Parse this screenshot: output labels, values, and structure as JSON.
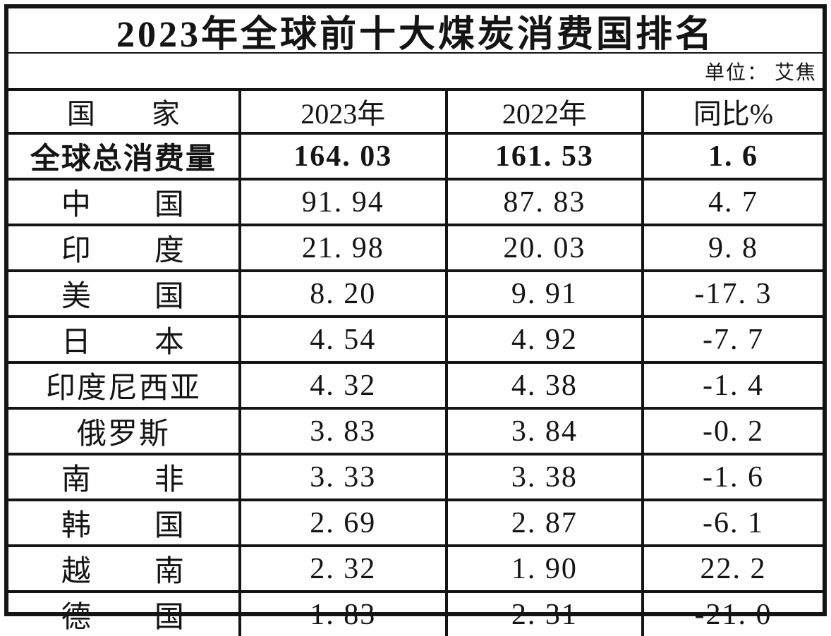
{
  "title": "2023年全球前十大煤炭消费国排名",
  "unit_label": "单位： 艾焦",
  "table": {
    "header": [
      "国　　家",
      "2023年",
      "2022年",
      "同比%"
    ],
    "total_row": {
      "country": "全球总消费量",
      "v2023": "164. 03",
      "v2022": "161. 53",
      "yoy": "1. 6"
    },
    "rows": [
      {
        "country": "中　　国",
        "v2023": "91. 94",
        "v2022": "87. 83",
        "yoy": "4. 7"
      },
      {
        "country": "印　　度",
        "v2023": "21. 98",
        "v2022": "20. 03",
        "yoy": "9. 8"
      },
      {
        "country": "美　　国",
        "v2023": "8. 20",
        "v2022": "9. 91",
        "yoy": "-17. 3"
      },
      {
        "country": "日　　本",
        "v2023": "4. 54",
        "v2022": "4. 92",
        "yoy": "-7. 7"
      },
      {
        "country": "印度尼西亚",
        "v2023": "4. 32",
        "v2022": "4. 38",
        "yoy": "-1. 4"
      },
      {
        "country": "俄罗斯",
        "v2023": "3. 83",
        "v2022": "3. 84",
        "yoy": "-0. 2"
      },
      {
        "country": "南　　非",
        "v2023": "3. 33",
        "v2022": "3. 38",
        "yoy": "-1. 6"
      },
      {
        "country": "韩　　国",
        "v2023": "2. 69",
        "v2022": "2. 87",
        "yoy": "-6. 1"
      },
      {
        "country": "越　　南",
        "v2023": "2. 32",
        "v2022": "1. 90",
        "yoy": "22. 2"
      },
      {
        "country": "德　　国",
        "v2023": "1. 83",
        "v2022": "2. 31",
        "yoy": "-21. 0"
      }
    ]
  },
  "chart_data": {
    "type": "table",
    "title": "2023年全球前十大煤炭消费国排名",
    "unit": "艾焦",
    "columns": [
      "国家",
      "2023年",
      "2022年",
      "同比%"
    ],
    "rows": [
      [
        "全球总消费量",
        164.03,
        161.53,
        1.6
      ],
      [
        "中国",
        91.94,
        87.83,
        4.7
      ],
      [
        "印度",
        21.98,
        20.03,
        9.8
      ],
      [
        "美国",
        8.2,
        9.91,
        -17.3
      ],
      [
        "日本",
        4.54,
        4.92,
        -7.7
      ],
      [
        "印度尼西亚",
        4.32,
        4.38,
        -1.4
      ],
      [
        "俄罗斯",
        3.83,
        3.84,
        -0.2
      ],
      [
        "南非",
        3.33,
        3.38,
        -1.6
      ],
      [
        "韩国",
        2.69,
        2.87,
        -6.1
      ],
      [
        "越南",
        2.32,
        1.9,
        22.2
      ],
      [
        "德国",
        1.83,
        2.31,
        -21.0
      ]
    ]
  },
  "colors": {
    "border": "#141414",
    "text": "#141414",
    "background": "#fefefe"
  }
}
